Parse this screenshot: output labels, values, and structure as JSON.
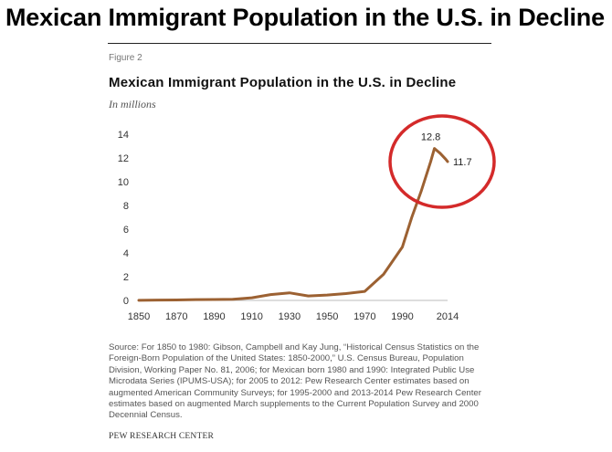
{
  "headline": "Mexican Immigrant Population in the U.S. in Decline",
  "figure_label": "Figure 2",
  "units_label": "In millions",
  "source_text": "Source: For 1850 to 1980: Gibson, Campbell and Kay Jung, “Historical Census Statistics on the Foreign-Born Population of the United States: 1850-2000,” U.S. Census Bureau, Population Division, Working Paper No. 81, 2006; for Mexican born 1980 and 1990: Integrated Public Use Microdata Series (IPUMS-USA); for 2005 to 2012: Pew Research Center estimates based on augmented American Community Surveys; for 1995-2000 and 2013-2014 Pew Research Center estimates based on augmented March supplements to the Current Population Survey and 2000 Decennial Census.",
  "organization": "PEW RESEARCH CENTER",
  "colors": {
    "line": "#9c6132",
    "highlight_circle": "#d42a2a"
  },
  "chart_data": {
    "type": "line",
    "title": "Mexican Immigrant Population in the U.S. in Decline",
    "xlabel": "",
    "ylabel": "In millions",
    "xlim": [
      1850,
      2014
    ],
    "ylim": [
      0,
      14
    ],
    "x_ticks": [
      "1850",
      "1870",
      "1890",
      "1910",
      "1930",
      "1950",
      "1970",
      "1990",
      "2014"
    ],
    "x_tick_values": [
      1850,
      1870,
      1890,
      1910,
      1930,
      1950,
      1970,
      1990,
      2014
    ],
    "y_ticks": [
      0,
      2,
      4,
      6,
      8,
      10,
      12,
      14
    ],
    "grid": false,
    "series": [
      {
        "name": "Mexican immigrant population",
        "x": [
          1850,
          1860,
          1870,
          1880,
          1890,
          1900,
          1910,
          1920,
          1930,
          1940,
          1950,
          1960,
          1970,
          1980,
          1990,
          1995,
          2000,
          2005,
          2007,
          2010,
          2013,
          2014
        ],
        "values": [
          0.01,
          0.03,
          0.04,
          0.07,
          0.08,
          0.1,
          0.22,
          0.49,
          0.64,
          0.38,
          0.45,
          0.58,
          0.76,
          2.2,
          4.5,
          7.0,
          9.2,
          11.7,
          12.8,
          12.4,
          11.9,
          11.7
        ]
      }
    ],
    "annotations": [
      {
        "text": "12.8",
        "x": 2007,
        "y": 12.8
      },
      {
        "text": "11.7",
        "x": 2014,
        "y": 11.7
      }
    ],
    "highlight": {
      "shape": "circle",
      "around": "2005-2014 peak and decline"
    }
  }
}
